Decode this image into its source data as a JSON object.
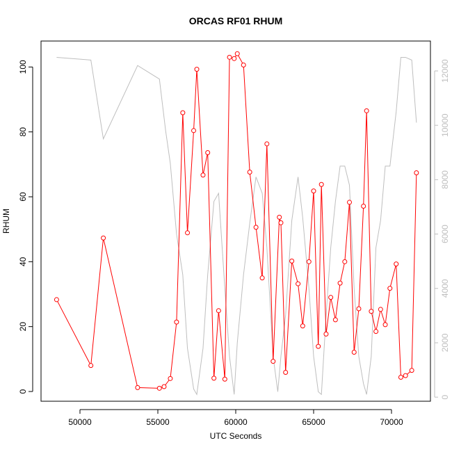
{
  "chart_data": {
    "type": "line",
    "title": "ORCAS RF01 RHUM",
    "xlabel": "UTC Seconds",
    "ylabel": "RHUM",
    "xlim": [
      47500,
      72500
    ],
    "ylim": [
      -3,
      108
    ],
    "xticks": [
      50000,
      55000,
      60000,
      65000,
      70000
    ],
    "yticks": [
      0,
      20,
      40,
      60,
      80,
      100
    ],
    "y2lim": [
      -150,
      13100
    ],
    "y2ticks": [
      0,
      2000,
      4000,
      6000,
      8000,
      10000,
      12000
    ],
    "colors": {
      "primary": "#ff0000",
      "secondary": "#bebebe"
    },
    "series": [
      {
        "axis": "left",
        "style": "line+points",
        "x": [
          48500,
          50700,
          51500,
          53700,
          55100,
          55400,
          55800,
          56200,
          56600,
          56900,
          57300,
          57500,
          57900,
          58200,
          58600,
          58900,
          59300,
          59600,
          59900,
          60100,
          60500,
          60900,
          61300,
          61700,
          62000,
          62400,
          62800,
          62900,
          63200,
          63600,
          64000,
          64300,
          64700,
          65000,
          65300,
          65500,
          65800,
          66100,
          66400,
          66700,
          67000,
          67300,
          67600,
          67900,
          68200,
          68400,
          68700,
          69000,
          69300,
          69600,
          69900,
          70300,
          70600,
          70900,
          71300,
          71600
        ],
        "y": [
          28.3,
          8.0,
          47.3,
          1.2,
          1.0,
          1.5,
          4.0,
          21.4,
          85.9,
          48.9,
          80.4,
          99.3,
          66.7,
          73.6,
          4.1,
          24.9,
          3.8,
          103.0,
          102.6,
          104.1,
          100.6,
          67.6,
          50.6,
          35.0,
          76.3,
          9.3,
          53.7,
          52.0,
          5.9,
          40.2,
          33.2,
          20.2,
          40.0,
          61.8,
          13.9,
          63.8,
          17.7,
          29.0,
          22.1,
          33.4,
          40.0,
          58.3,
          12.1,
          25.5,
          57.1,
          86.5,
          24.7,
          18.5,
          25.3,
          20.6,
          31.8,
          39.3,
          4.4,
          4.9,
          6.5,
          67.4
        ]
      },
      {
        "axis": "right",
        "style": "line",
        "x": [
          48500,
          50700,
          51500,
          53700,
          55100,
          55500,
          55800,
          56200,
          56600,
          56900,
          57300,
          57500,
          57900,
          58200,
          58600,
          58900,
          59300,
          59600,
          59900,
          60100,
          60500,
          60900,
          61300,
          61700,
          62000,
          62400,
          62700,
          62900,
          63200,
          63600,
          64000,
          64300,
          64700,
          65000,
          65300,
          65500,
          65800,
          66100,
          66400,
          66700,
          67000,
          67300,
          67600,
          67900,
          68200,
          68400,
          68700,
          69000,
          69300,
          69600,
          69900,
          70300,
          70600,
          70900,
          71300,
          71600
        ],
        "y": [
          12500,
          12400,
          9500,
          12200,
          11700,
          9800,
          8600,
          6000,
          4500,
          1800,
          300,
          100,
          1800,
          4500,
          7200,
          7500,
          4000,
          1500,
          100,
          2000,
          4500,
          6400,
          8100,
          7500,
          5500,
          1500,
          200,
          1500,
          3000,
          6500,
          8100,
          6600,
          4000,
          1500,
          200,
          100,
          3000,
          5500,
          7200,
          8500,
          8500,
          7800,
          4000,
          1500,
          500,
          100,
          1500,
          5500,
          6500,
          8500,
          8500,
          10500,
          12500,
          12500,
          12400,
          10100
        ]
      }
    ]
  }
}
